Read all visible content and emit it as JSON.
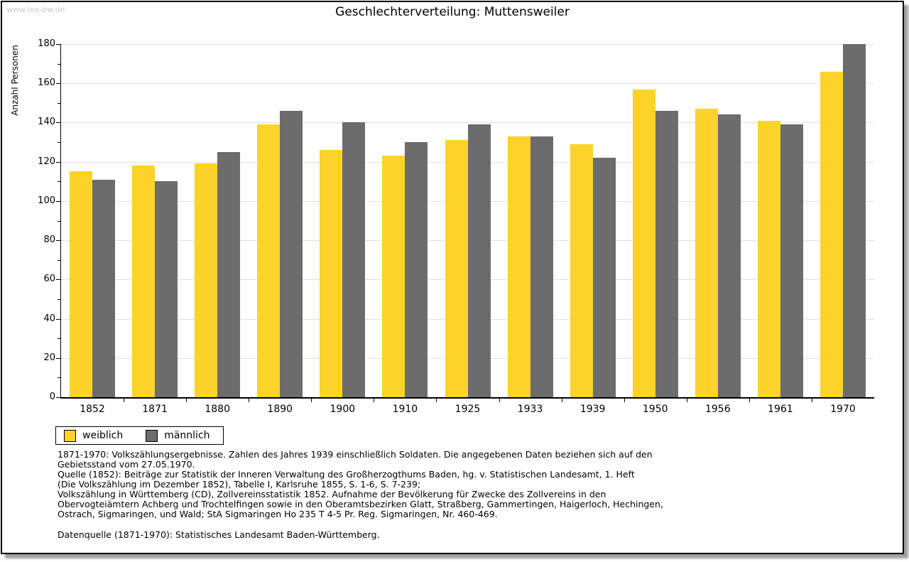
{
  "watermark": "www.leo-bw.de",
  "title": "Geschlechterverteilung: Muttensweiler",
  "chart_data": {
    "type": "bar",
    "title": "Geschlechterverteilung: Muttensweiler",
    "xlabel": "",
    "ylabel": "Anzahl Personen",
    "ylim": [
      0,
      180
    ],
    "ytick_major_step": 20,
    "ytick_minor_step": 10,
    "grid": true,
    "legend_position": "bottom-left",
    "categories": [
      "1852",
      "1871",
      "1880",
      "1890",
      "1900",
      "1910",
      "1925",
      "1933",
      "1939",
      "1950",
      "1956",
      "1961",
      "1970"
    ],
    "series": [
      {
        "name": "weiblich",
        "color": "#fbd32b",
        "values": [
          115,
          118,
          119,
          139,
          126,
          123,
          131,
          133,
          129,
          157,
          147,
          141,
          166
        ]
      },
      {
        "name": "männlich",
        "color": "#6c6c6c",
        "values": [
          111,
          110,
          125,
          146,
          140,
          130,
          139,
          133,
          122,
          146,
          144,
          139,
          180
        ]
      }
    ]
  },
  "notes": {
    "lines": [
      "1871-1970: Volkszählungsergebnisse. Zahlen des Jahres 1939 einschließlich Soldaten. Die angegebenen Daten beziehen sich auf den",
      "Gebietsstand vom 27.05.1970.",
      "Quelle (1852): Beiträge zur Statistik der Inneren Verwaltung des Großherzogthums Baden, hg. v. Statistischen Landesamt, 1. Heft",
      "(Die Volkszählung im Dezember 1852), Tabelle I, Karlsruhe 1855, S. 1-6, S. 7-239;",
      "Volkszählung in Württemberg (CD), Zollvereinsstatistik 1852. Aufnahme der Bevölkerung für Zwecke des Zollvereins in den",
      "Obervogteiämtern Achberg und Trochtelfingen sowie in den Oberamtsbezirken Glatt, Straßberg, Gammertingen, Haigerloch, Hechingen,",
      "Ostrach, Sigmaringen, und Wald; StA Sigmaringen Ho 235 T 4-5 Pr. Reg. Sigmaringen, Nr. 460-469."
    ]
  },
  "source": "Datenquelle (1871-1970): Statistisches Landesamt Baden-Württemberg."
}
